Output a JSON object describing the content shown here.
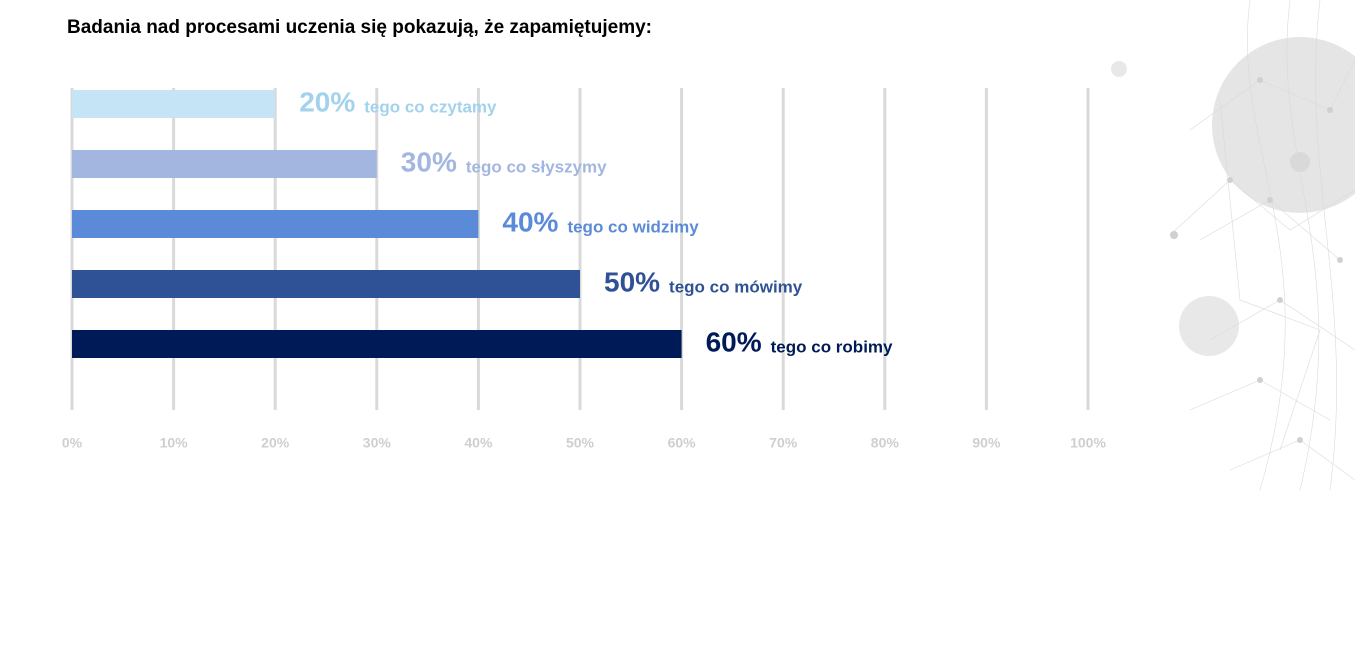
{
  "chart_data": {
    "type": "bar",
    "orientation": "horizontal",
    "title": "Badania nad procesami uczenia się pokazują, że zapamiętujemy:",
    "categories": [
      "tego co czytamy",
      "tego co słyszymy",
      "tego co widzimy",
      "tego co mówimy",
      "tego co robimy"
    ],
    "values": [
      20,
      30,
      40,
      50,
      60
    ],
    "value_labels": [
      "20%",
      "30%",
      "40%",
      "50%",
      "60%"
    ],
    "colors": [
      "#c5e4f5",
      "#a3b6e0",
      "#5b8bd8",
      "#2f5196",
      "#001a57"
    ],
    "label_colors": [
      "#a3d3ec",
      "#a3b6e0",
      "#5b8bd8",
      "#2f5196",
      "#001a57"
    ],
    "xlim": [
      0,
      100
    ],
    "xticks": [
      {
        "value": 0,
        "label": "0%"
      },
      {
        "value": 10,
        "label": "10%"
      },
      {
        "value": 20,
        "label": "20%"
      },
      {
        "value": 30,
        "label": "30%"
      },
      {
        "value": 40,
        "label": "40%"
      },
      {
        "value": 50,
        "label": "50%"
      },
      {
        "value": 60,
        "label": "60%"
      },
      {
        "value": 70,
        "label": "70%"
      },
      {
        "value": 80,
        "label": "80%"
      },
      {
        "value": 90,
        "label": "90%"
      },
      {
        "value": 100,
        "label": "100%"
      }
    ],
    "grid": true
  }
}
